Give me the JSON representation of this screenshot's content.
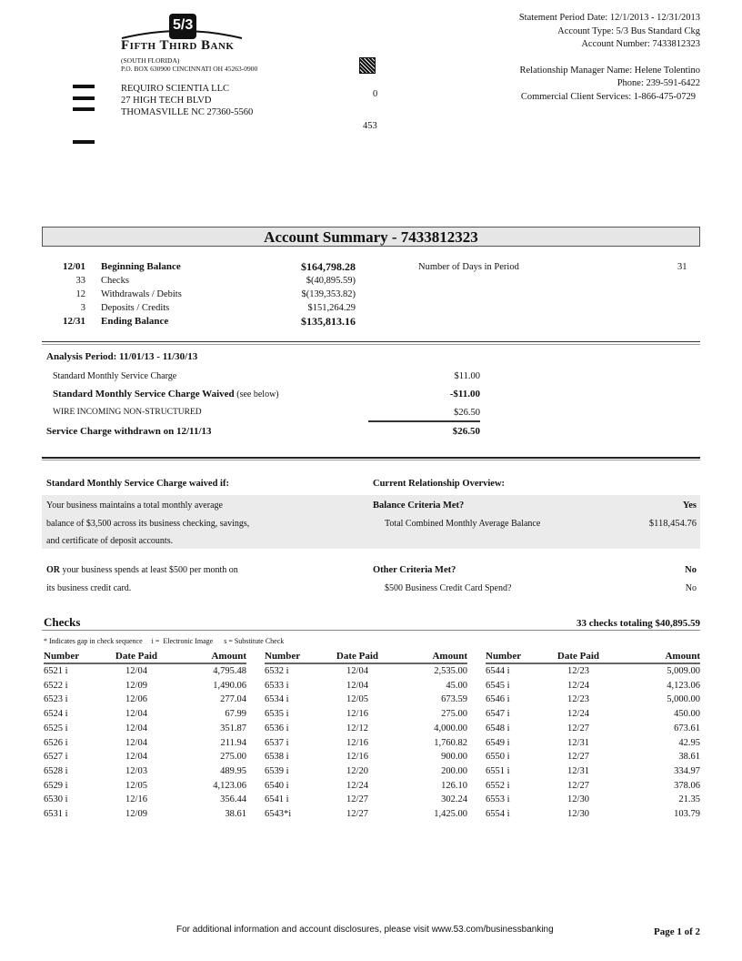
{
  "bank": {
    "name": "Fifth Third Bank",
    "logo_text": "5/3",
    "region": "(SOUTH FLORIDA)",
    "address": "P.O. BOX 630900 CINCINNATI OH  45263-0900"
  },
  "customer": {
    "name": "REQUIRO SCIENTIA LLC",
    "street": "27 HIGH TECH BLVD",
    "city": "THOMASVILLE NC  27360-5560"
  },
  "codes": {
    "code1": "0",
    "code2": "453"
  },
  "statement": {
    "period": "Statement Period Date: 12/1/2013 - 12/31/2013",
    "type": "Account Type: 5/3 Bus Standard Ckg",
    "number": "Account Number: 7433812323",
    "manager": "Relationship Manager Name: Helene Tolentino",
    "phone": "Phone: 239-591-6422",
    "services": "Commercial Client Services: 1-866-475-0729"
  },
  "summary": {
    "title": "Account Summary - 7433812323",
    "rows": [
      {
        "a": "12/01",
        "label": "Beginning Balance",
        "amount": "$164,798.28",
        "bold": true
      },
      {
        "a": "33",
        "label": "Checks",
        "amount": "$(40,895.59)",
        "bold": false
      },
      {
        "a": "12",
        "label": "Withdrawals / Debits",
        "amount": "$(139,353.82)",
        "bold": false
      },
      {
        "a": "3",
        "label": "Deposits / Credits",
        "amount": "$151,264.29",
        "bold": false
      },
      {
        "a": "12/31",
        "label": "Ending Balance",
        "amount": "$135,813.16",
        "bold": true
      }
    ],
    "days_label": "Number of Days in Period",
    "days": "31"
  },
  "analysis": {
    "period": "Analysis Period: 11/01/13 - 11/30/13",
    "r1_label": "Standard Monthly Service Charge",
    "r1_amt": "$11.00",
    "r2_label": "Standard Monthly Service Charge Waived",
    "r2_note": "(see below)",
    "r2_amt": "-$11.00",
    "r3_label": "WIRE INCOMING NON-STRUCTURED",
    "r3_amt": "$26.50",
    "total_label": "Service Charge withdrawn on 12/11/13",
    "total_amt": "$26.50"
  },
  "waiver": {
    "heading": "Standard Monthly Service Charge waived if:",
    "overview": "Current Relationship Overview:",
    "l1": "Your business maintains a total monthly average",
    "l2": "balance of $3,500 across its business checking, savings,",
    "l3": "and certificate of deposit accounts.",
    "bal_q": "Balance Criteria Met?",
    "bal_a": "Yes",
    "bal_label": "Total Combined Monthly Average Balance",
    "bal_amt": "$118,454.76",
    "or": "OR",
    "l4": "your business spends at least $500 per month on",
    "l5": "its business credit card.",
    "oth_q": "Other Criteria Met?",
    "oth_a": "No",
    "cc_label": "$500 Business Credit Card Spend?",
    "cc_a": "No"
  },
  "checks": {
    "title": "Checks",
    "total": "33 checks totaling $40,895.59",
    "legend": "* Indicates gap in check sequence     i =  Electronic Image      s = Substitute Check",
    "headers": [
      "Number",
      "Date Paid",
      "Amount"
    ],
    "columns": [
      [
        [
          "6521 i",
          "12/04",
          "4,795.48"
        ],
        [
          "6522 i",
          "12/09",
          "1,490.06"
        ],
        [
          "6523 i",
          "12/06",
          "277.04"
        ],
        [
          "6524 i",
          "12/04",
          "67.99"
        ],
        [
          "6525 i",
          "12/04",
          "351.87"
        ],
        [
          "6526 i",
          "12/04",
          "211.94"
        ],
        [
          "6527 i",
          "12/04",
          "275.00"
        ],
        [
          "6528 i",
          "12/03",
          "489.95"
        ],
        [
          "6529 i",
          "12/05",
          "4,123.06"
        ],
        [
          "6530 i",
          "12/16",
          "356.44"
        ],
        [
          "6531 i",
          "12/09",
          "38.61"
        ]
      ],
      [
        [
          "6532 i",
          "12/04",
          "2,535.00"
        ],
        [
          "6533 i",
          "12/04",
          "45.00"
        ],
        [
          "6534 i",
          "12/05",
          "673.59"
        ],
        [
          "6535 i",
          "12/16",
          "275.00"
        ],
        [
          "6536 i",
          "12/12",
          "4,000.00"
        ],
        [
          "6537 i",
          "12/16",
          "1,760.82"
        ],
        [
          "6538 i",
          "12/16",
          "900.00"
        ],
        [
          "6539 i",
          "12/20",
          "200.00"
        ],
        [
          "6540 i",
          "12/24",
          "126.10"
        ],
        [
          "6541 i",
          "12/27",
          "302.24"
        ],
        [
          "6543*i",
          "12/27",
          "1,425.00"
        ]
      ],
      [
        [
          "6544 i",
          "12/23",
          "5,009.00"
        ],
        [
          "6545 i",
          "12/24",
          "4,123.06"
        ],
        [
          "6546 i",
          "12/23",
          "5,000.00"
        ],
        [
          "6547 i",
          "12/24",
          "450.00"
        ],
        [
          "6548 i",
          "12/27",
          "673.61"
        ],
        [
          "6549 i",
          "12/31",
          "42.95"
        ],
        [
          "6550 i",
          "12/27",
          "38.61"
        ],
        [
          "6551 i",
          "12/31",
          "334.97"
        ],
        [
          "6552 i",
          "12/27",
          "378.06"
        ],
        [
          "6553 i",
          "12/30",
          "21.35"
        ],
        [
          "6554 i",
          "12/30",
          "103.79"
        ]
      ]
    ]
  },
  "footer": {
    "note": "For additional information and account disclosures, please visit www.53.com/businessbanking",
    "page": "Page 1 of 2"
  }
}
